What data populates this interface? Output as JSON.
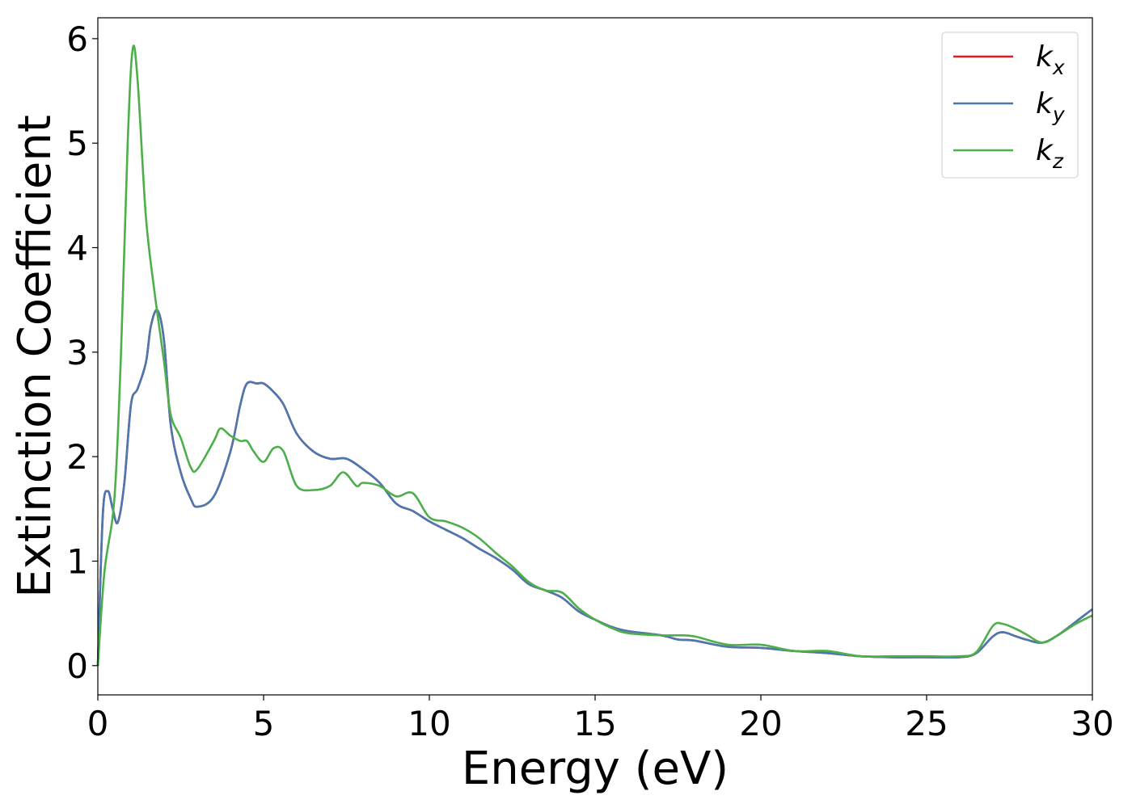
{
  "chart_data": {
    "type": "line",
    "title": "",
    "xlabel": "Energy (eV)",
    "ylabel": "Extinction Coefficient",
    "xlim": [
      0,
      30
    ],
    "ylim": [
      -0.28,
      6.2
    ],
    "xticks": [
      0,
      5,
      10,
      15,
      20,
      25,
      30
    ],
    "yticks": [
      0,
      1,
      2,
      3,
      4,
      5,
      6
    ],
    "grid": false,
    "legend_position": "top-right",
    "series": [
      {
        "name": "k",
        "subscript": "x",
        "color": "#e41a1c",
        "x": [
          0,
          0.15,
          0.3,
          0.45,
          0.6,
          0.8,
          1.0,
          1.2,
          1.45,
          1.6,
          1.8,
          2.0,
          2.2,
          2.5,
          2.8,
          3.0,
          3.5,
          4.0,
          4.3,
          4.5,
          4.8,
          5.0,
          5.3,
          5.6,
          6.0,
          6.5,
          7.0,
          7.5,
          8.0,
          8.5,
          9.0,
          9.5,
          10.0,
          10.5,
          11.0,
          11.5,
          12.0,
          12.5,
          13.0,
          13.5,
          14.0,
          14.5,
          15.0,
          15.5,
          16.0,
          17.0,
          17.5,
          18.0,
          19.0,
          20.0,
          21.0,
          22.0,
          23.0,
          24.0,
          25.0,
          26.0,
          26.5,
          27.0,
          27.3,
          27.7,
          28.0,
          28.5,
          29.0,
          29.5,
          30.0
        ],
        "values": [
          0.0,
          1.45,
          1.67,
          1.5,
          1.37,
          1.75,
          2.5,
          2.65,
          2.9,
          3.25,
          3.4,
          3.1,
          2.3,
          1.85,
          1.6,
          1.52,
          1.62,
          2.05,
          2.5,
          2.7,
          2.7,
          2.7,
          2.62,
          2.5,
          2.22,
          2.05,
          1.98,
          1.98,
          1.88,
          1.75,
          1.55,
          1.48,
          1.38,
          1.3,
          1.22,
          1.12,
          1.03,
          0.92,
          0.78,
          0.72,
          0.65,
          0.52,
          0.44,
          0.37,
          0.33,
          0.29,
          0.25,
          0.24,
          0.18,
          0.17,
          0.14,
          0.12,
          0.09,
          0.08,
          0.08,
          0.08,
          0.12,
          0.28,
          0.32,
          0.28,
          0.25,
          0.22,
          0.3,
          0.42,
          0.54
        ]
      },
      {
        "name": "k",
        "subscript": "y",
        "color": "#4a78b0",
        "x": [
          0,
          0.15,
          0.3,
          0.45,
          0.6,
          0.8,
          1.0,
          1.2,
          1.45,
          1.6,
          1.8,
          2.0,
          2.2,
          2.5,
          2.8,
          3.0,
          3.5,
          4.0,
          4.3,
          4.5,
          4.8,
          5.0,
          5.3,
          5.6,
          6.0,
          6.5,
          7.0,
          7.5,
          8.0,
          8.5,
          9.0,
          9.5,
          10.0,
          10.5,
          11.0,
          11.5,
          12.0,
          12.5,
          13.0,
          13.5,
          14.0,
          14.5,
          15.0,
          15.5,
          16.0,
          17.0,
          17.5,
          18.0,
          19.0,
          20.0,
          21.0,
          22.0,
          23.0,
          24.0,
          25.0,
          26.0,
          26.5,
          27.0,
          27.3,
          27.7,
          28.0,
          28.5,
          29.0,
          29.5,
          30.0
        ],
        "values": [
          0.0,
          1.45,
          1.67,
          1.5,
          1.37,
          1.75,
          2.5,
          2.65,
          2.9,
          3.25,
          3.4,
          3.1,
          2.3,
          1.85,
          1.6,
          1.52,
          1.62,
          2.05,
          2.5,
          2.7,
          2.7,
          2.7,
          2.62,
          2.5,
          2.22,
          2.05,
          1.98,
          1.98,
          1.88,
          1.75,
          1.55,
          1.48,
          1.38,
          1.3,
          1.22,
          1.12,
          1.03,
          0.92,
          0.78,
          0.72,
          0.65,
          0.52,
          0.44,
          0.37,
          0.33,
          0.29,
          0.25,
          0.24,
          0.18,
          0.17,
          0.14,
          0.12,
          0.09,
          0.08,
          0.08,
          0.08,
          0.12,
          0.28,
          0.32,
          0.28,
          0.25,
          0.22,
          0.3,
          0.42,
          0.54
        ]
      },
      {
        "name": "k",
        "subscript": "z",
        "color": "#4daf4a",
        "x": [
          0,
          0.2,
          0.5,
          0.7,
          0.9,
          1.05,
          1.2,
          1.45,
          1.7,
          2.0,
          2.2,
          2.5,
          2.8,
          3.0,
          3.5,
          3.7,
          4.0,
          4.3,
          4.5,
          4.7,
          5.0,
          5.3,
          5.6,
          6.0,
          6.5,
          7.0,
          7.4,
          7.8,
          8.0,
          8.5,
          9.0,
          9.5,
          10.0,
          10.5,
          11.0,
          11.5,
          12.0,
          12.5,
          13.0,
          13.5,
          14.0,
          14.5,
          15.0,
          15.5,
          16.0,
          17.0,
          17.5,
          18.0,
          19.0,
          20.0,
          21.0,
          22.0,
          23.0,
          24.0,
          25.0,
          26.0,
          26.5,
          27.0,
          27.3,
          27.7,
          28.0,
          28.5,
          29.0,
          29.5,
          30.0
        ],
        "values": [
          0.0,
          0.9,
          1.6,
          3.0,
          5.0,
          5.9,
          5.6,
          4.3,
          3.6,
          2.9,
          2.4,
          2.18,
          1.9,
          1.88,
          2.15,
          2.27,
          2.2,
          2.15,
          2.15,
          2.05,
          1.95,
          2.08,
          2.05,
          1.72,
          1.68,
          1.72,
          1.85,
          1.72,
          1.75,
          1.72,
          1.62,
          1.65,
          1.42,
          1.38,
          1.32,
          1.22,
          1.08,
          0.95,
          0.8,
          0.72,
          0.7,
          0.55,
          0.44,
          0.36,
          0.31,
          0.29,
          0.29,
          0.28,
          0.2,
          0.2,
          0.14,
          0.14,
          0.09,
          0.09,
          0.09,
          0.09,
          0.13,
          0.38,
          0.4,
          0.35,
          0.3,
          0.22,
          0.3,
          0.4,
          0.48
        ]
      }
    ]
  }
}
